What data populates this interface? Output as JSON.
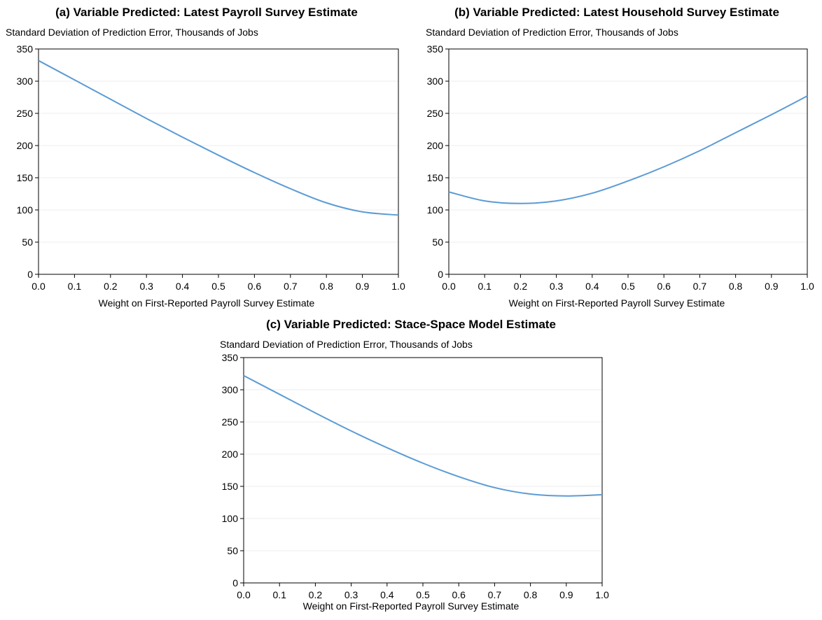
{
  "chart_data": [
    {
      "type": "line",
      "title": "(a) Variable Predicted: Latest Payroll Survey Estimate",
      "ylabel": "Standard Deviation of Prediction Error, Thousands of Jobs",
      "xlabel": "Weight on First-Reported Payroll Survey Estimate",
      "xlim": [
        0,
        1
      ],
      "ylim": [
        0,
        350
      ],
      "xticks": [
        "0.0",
        "0.1",
        "0.2",
        "0.3",
        "0.4",
        "0.5",
        "0.6",
        "0.7",
        "0.8",
        "0.9",
        "1.0"
      ],
      "yticks": [
        "0",
        "50",
        "100",
        "150",
        "200",
        "250",
        "300",
        "350"
      ],
      "grid": true,
      "color": "#5b9bd5",
      "x": [
        0.0,
        0.1,
        0.2,
        0.3,
        0.4,
        0.5,
        0.6,
        0.7,
        0.8,
        0.9,
        1.0
      ],
      "y": [
        332,
        302,
        272,
        242,
        213,
        185,
        158,
        133,
        111,
        97,
        92
      ]
    },
    {
      "type": "line",
      "title": "(b) Variable Predicted: Latest Household Survey Estimate",
      "ylabel": "Standard Deviation of Prediction Error, Thousands of Jobs",
      "xlabel": "Weight on First-Reported Payroll Survey Estimate",
      "xlim": [
        0,
        1
      ],
      "ylim": [
        0,
        350
      ],
      "xticks": [
        "0.0",
        "0.1",
        "0.2",
        "0.3",
        "0.4",
        "0.5",
        "0.6",
        "0.7",
        "0.8",
        "0.9",
        "1.0"
      ],
      "yticks": [
        "0",
        "50",
        "100",
        "150",
        "200",
        "250",
        "300",
        "350"
      ],
      "grid": true,
      "color": "#5b9bd5",
      "x": [
        0.0,
        0.1,
        0.2,
        0.3,
        0.4,
        0.5,
        0.6,
        0.7,
        0.8,
        0.9,
        1.0
      ],
      "y": [
        128,
        114,
        110,
        114,
        126,
        145,
        167,
        192,
        220,
        248,
        277
      ]
    },
    {
      "type": "line",
      "title": "(c) Variable Predicted: Stace-Space Model Estimate",
      "ylabel": "Standard Deviation of Prediction Error, Thousands of Jobs",
      "xlabel": "Weight on First-Reported Payroll Survey Estimate",
      "xlim": [
        0,
        1
      ],
      "ylim": [
        0,
        350
      ],
      "xticks": [
        "0.0",
        "0.1",
        "0.2",
        "0.3",
        "0.4",
        "0.5",
        "0.6",
        "0.7",
        "0.8",
        "0.9",
        "1.0"
      ],
      "yticks": [
        "0",
        "50",
        "100",
        "150",
        "200",
        "250",
        "300",
        "350"
      ],
      "grid": true,
      "color": "#5b9bd5",
      "x": [
        0.0,
        0.1,
        0.2,
        0.3,
        0.4,
        0.5,
        0.6,
        0.7,
        0.8,
        0.9,
        1.0
      ],
      "y": [
        322,
        293,
        264,
        236,
        210,
        186,
        165,
        148,
        138,
        135,
        137
      ]
    }
  ]
}
